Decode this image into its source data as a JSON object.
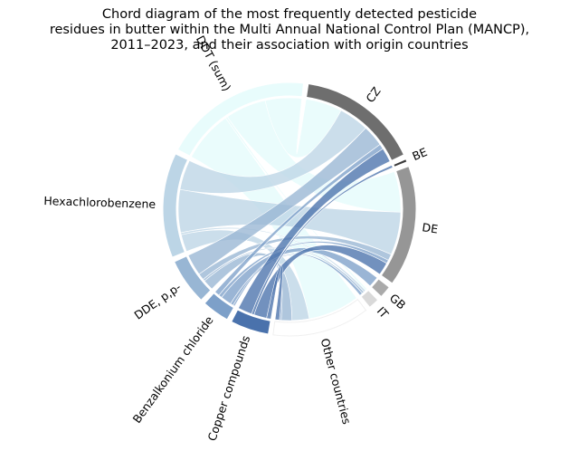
{
  "title_lines": [
    "Chord diagram of the most frequently detected pesticide",
    "residues in butter within the Multi Annual National Control Plan (MANCP),",
    "2011–2023, and their association with origin countries"
  ],
  "chart_data": {
    "type": "chord",
    "countries": [
      {
        "key": "CZ",
        "label": "CZ",
        "color": "#6e6e6e"
      },
      {
        "key": "BE",
        "label": "BE",
        "color": "#3a3a3a"
      },
      {
        "key": "DE",
        "label": "DE",
        "color": "#969696"
      },
      {
        "key": "GB",
        "label": "GB",
        "color": "#aaaaaa"
      },
      {
        "key": "IT",
        "label": "IT",
        "color": "#d9d9d9"
      },
      {
        "key": "OTHER",
        "label": "Other countries",
        "color": "#ffffff"
      }
    ],
    "pesticides": [
      {
        "key": "COPPER",
        "label": "Copper compounds",
        "color": "#4a72ac"
      },
      {
        "key": "BAC",
        "label": "Benzalkonium chloride",
        "color": "#7da0c9"
      },
      {
        "key": "DDE",
        "label": "DDE, p,p-",
        "color": "#98b6d4"
      },
      {
        "key": "HCB",
        "label": "Hexachlorobenzene",
        "color": "#bcd5e6"
      },
      {
        "key": "DDT",
        "label": "DDT (sum)",
        "color": "#e8fcfc"
      }
    ],
    "flows": [
      {
        "country": "CZ",
        "pesticide": "COPPER",
        "value": 3.3
      },
      {
        "country": "CZ",
        "pesticide": "BAC",
        "value": 1.2
      },
      {
        "country": "CZ",
        "pesticide": "DDE",
        "value": 5.0
      },
      {
        "country": "CZ",
        "pesticide": "HCB",
        "value": 7.0
      },
      {
        "country": "CZ",
        "pesticide": "DDT",
        "value": 8.5
      },
      {
        "country": "BE",
        "pesticide": "COPPER",
        "value": 0.6
      },
      {
        "country": "DE",
        "pesticide": "COPPER",
        "value": 3.0
      },
      {
        "country": "DE",
        "pesticide": "BAC",
        "value": 0.8
      },
      {
        "country": "DE",
        "pesticide": "DDE",
        "value": 1.5
      },
      {
        "country": "DE",
        "pesticide": "HCB",
        "value": 10.0
      },
      {
        "country": "DE",
        "pesticide": "DDT",
        "value": 9.5
      },
      {
        "country": "GB",
        "pesticide": "BAC",
        "value": 2.5
      },
      {
        "country": "IT",
        "pesticide": "BAC",
        "value": 0.7
      },
      {
        "country": "IT",
        "pesticide": "DDE",
        "value": 0.5
      },
      {
        "country": "IT",
        "pesticide": "HCB",
        "value": 0.5
      },
      {
        "country": "IT",
        "pesticide": "DDT",
        "value": 0.5
      },
      {
        "country": "OTHER",
        "pesticide": "COPPER",
        "value": 1.0
      },
      {
        "country": "OTHER",
        "pesticide": "BAC",
        "value": 0.4
      },
      {
        "country": "OTHER",
        "pesticide": "DDE",
        "value": 2.5
      },
      {
        "country": "OTHER",
        "pesticide": "HCB",
        "value": 4.0
      },
      {
        "country": "OTHER",
        "pesticide": "DDT",
        "value": 12.0
      }
    ]
  }
}
